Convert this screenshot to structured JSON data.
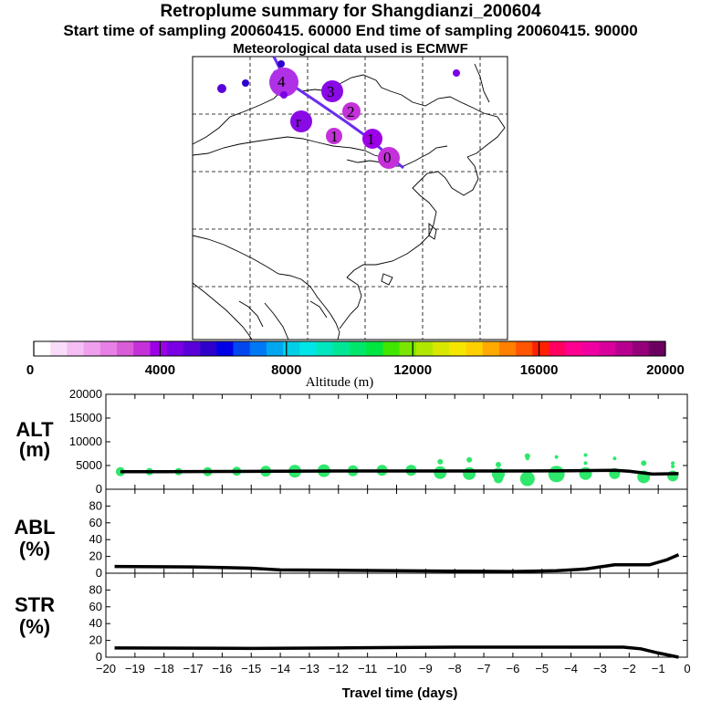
{
  "header": {
    "title": "Retroplume summary for Shangdianzi_200604",
    "sampling": "Start time of sampling 20060415. 60000     End time of sampling 20060415. 90000",
    "met": "Meteorological data used is ECMWF"
  },
  "chart_data": [
    {
      "type": "scatter",
      "name": "retroplume-map",
      "markers": [
        {
          "label": "4",
          "value_m": 4000
        },
        {
          "label": "3",
          "value_m": 4000
        },
        {
          "label": "r",
          "value_m": 3500
        },
        {
          "label": "2",
          "value_m": 3500
        },
        {
          "label": "1",
          "value_m": 3500
        },
        {
          "label": "1",
          "value_m": 3500
        },
        {
          "label": "0",
          "value_m": 3500
        }
      ]
    },
    {
      "type": "colorbar",
      "title": "Altitude (m)",
      "range": [
        0,
        20000
      ],
      "tick_labels": [
        "0",
        "4000",
        "8000",
        "12000",
        "16000",
        "20000"
      ],
      "colors": [
        "#ffffff",
        "#f9dcf9",
        "#f4bff4",
        "#eea0ee",
        "#e680e6",
        "#d95cd9",
        "#c431d9",
        "#9c00e6",
        "#7a00e6",
        "#5a00d9",
        "#2e00cc",
        "#0000e6",
        "#0047f0",
        "#0078f5",
        "#00a6f0",
        "#00cfe6",
        "#00e6e6",
        "#00e6bf",
        "#00e695",
        "#00e66b",
        "#00e640",
        "#40e600",
        "#7ae600",
        "#b0e600",
        "#d9e600",
        "#f5e600",
        "#ffd000",
        "#ffaa00",
        "#ff8000",
        "#ff5500",
        "#ff2000",
        "#ff0060",
        "#ff0090",
        "#f000a0",
        "#d9009c",
        "#b80090",
        "#95007a",
        "#6b0060"
      ]
    },
    {
      "type": "scatter",
      "name": "ALT",
      "ylabel": "ALT\n(m)",
      "ylim": [
        0,
        20000
      ],
      "y_ticks": [
        "0",
        "5000",
        "10000",
        "15000",
        "20000"
      ],
      "mean_line_x": [
        -19.5,
        -18,
        -16,
        -14,
        -12,
        -10,
        -8,
        -6,
        -4,
        -2.5,
        -2,
        -1.2,
        -0.3
      ],
      "mean_line_y": [
        3700,
        3700,
        3750,
        3800,
        3850,
        3850,
        3850,
        3850,
        3900,
        4000,
        3800,
        3200,
        3300
      ],
      "points": [
        {
          "x": -19.5,
          "y": 3700,
          "s": 5
        },
        {
          "x": -18.5,
          "y": 3700,
          "s": 4
        },
        {
          "x": -17.5,
          "y": 3700,
          "s": 4
        },
        {
          "x": -16.5,
          "y": 3700,
          "s": 5
        },
        {
          "x": -15.5,
          "y": 3800,
          "s": 5
        },
        {
          "x": -14.5,
          "y": 3800,
          "s": 6
        },
        {
          "x": -13.5,
          "y": 3800,
          "s": 7
        },
        {
          "x": -12.5,
          "y": 3900,
          "s": 7
        },
        {
          "x": -11.5,
          "y": 3900,
          "s": 6
        },
        {
          "x": -10.5,
          "y": 4000,
          "s": 6
        },
        {
          "x": -9.5,
          "y": 4000,
          "s": 6
        },
        {
          "x": -8.5,
          "y": 3500,
          "s": 7
        },
        {
          "x": -7.5,
          "y": 3300,
          "s": 7
        },
        {
          "x": -6.5,
          "y": 3200,
          "s": 7
        },
        {
          "x": -5.5,
          "y": 2200,
          "s": 8
        },
        {
          "x": -4.5,
          "y": 3200,
          "s": 9
        },
        {
          "x": -3.5,
          "y": 3300,
          "s": 7
        },
        {
          "x": -2.5,
          "y": 3300,
          "s": 6
        },
        {
          "x": -1.5,
          "y": 2600,
          "s": 7
        },
        {
          "x": -0.5,
          "y": 2800,
          "s": 6
        },
        {
          "x": -8.5,
          "y": 5800,
          "s": 3
        },
        {
          "x": -7.5,
          "y": 6200,
          "s": 3
        },
        {
          "x": -6.5,
          "y": 5200,
          "s": 3
        },
        {
          "x": -5.5,
          "y": 7000,
          "s": 3
        },
        {
          "x": -4.5,
          "y": 6800,
          "s": 2
        },
        {
          "x": -3.5,
          "y": 7200,
          "s": 2
        },
        {
          "x": -2.5,
          "y": 6500,
          "s": 2
        },
        {
          "x": -1.5,
          "y": 5500,
          "s": 3
        },
        {
          "x": -0.5,
          "y": 4800,
          "s": 2
        },
        {
          "x": -6.5,
          "y": 2200,
          "s": 5
        },
        {
          "x": -5.5,
          "y": 6500,
          "s": 2
        },
        {
          "x": -3.5,
          "y": 5500,
          "s": 2
        },
        {
          "x": -0.5,
          "y": 5500,
          "s": 2
        }
      ]
    },
    {
      "type": "line",
      "name": "ABL",
      "ylabel": "ABL\n(%)",
      "ylim": [
        0,
        100
      ],
      "y_ticks": [
        "0",
        "20",
        "40",
        "60",
        "80"
      ],
      "x": [
        -19.7,
        -17,
        -15,
        -14,
        -12,
        -10,
        -8,
        -6,
        -4.5,
        -3.5,
        -2.5,
        -1.3,
        -0.7,
        -0.3
      ],
      "y": [
        8,
        7.5,
        6,
        4,
        3.5,
        3,
        2.5,
        2,
        3,
        5,
        10,
        10,
        16,
        22
      ]
    },
    {
      "type": "line",
      "name": "STR",
      "ylabel": "STR\n(%)",
      "ylim": [
        0,
        100
      ],
      "y_ticks": [
        "0",
        "20",
        "40",
        "60",
        "80"
      ],
      "xlabel": "Travel time (days)",
      "x_ticks": [
        "−20",
        "−19",
        "−18",
        "−17",
        "−16",
        "−15",
        "−14",
        "−13",
        "−12",
        "−11",
        "−10",
        "−9",
        "−8",
        "−7",
        "−6",
        "−5",
        "−4",
        "−3",
        "−2",
        "−1",
        "0"
      ],
      "x": [
        -19.7,
        -15,
        -12,
        -10,
        -8,
        -6,
        -4,
        -3,
        -2.2,
        -1.6,
        -1,
        -0.3
      ],
      "y": [
        11,
        10.5,
        11,
        11.5,
        12,
        12,
        12,
        12,
        12,
        10,
        5,
        0
      ]
    }
  ]
}
